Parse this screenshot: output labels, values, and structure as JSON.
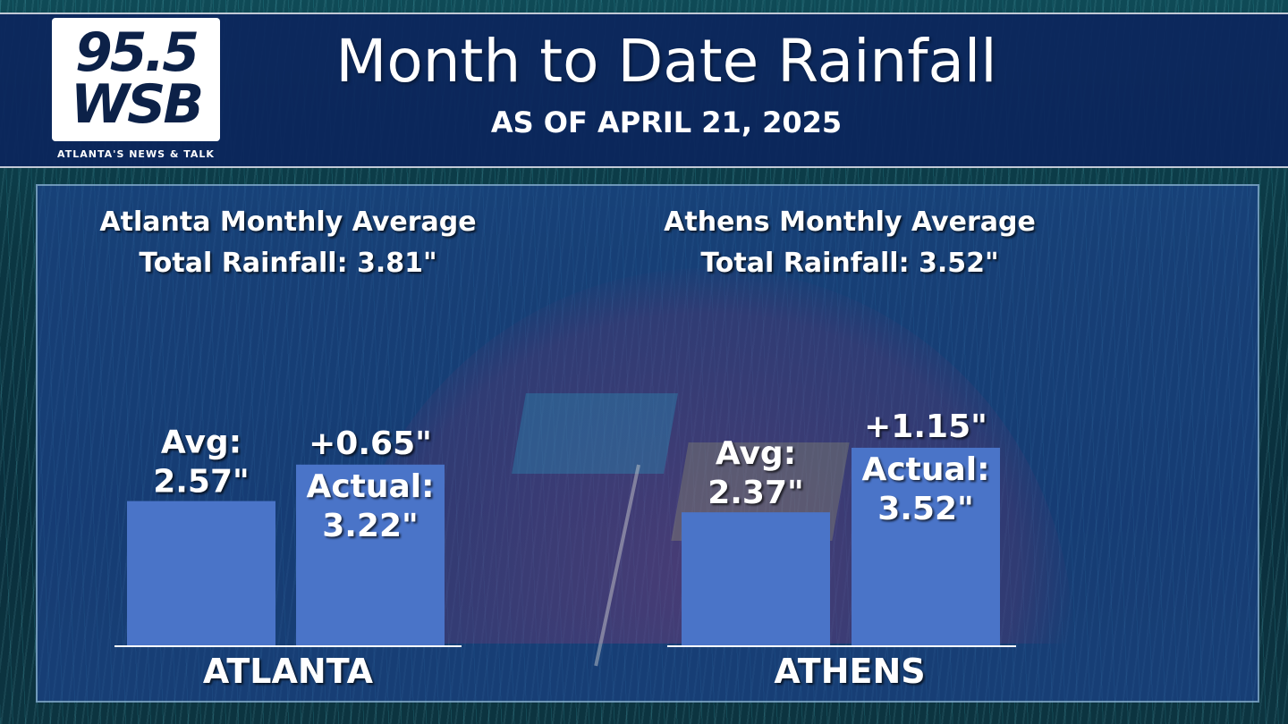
{
  "brand": {
    "station": "95.5",
    "call_sign": "WSB",
    "tagline": "ATLANTA'S NEWS & TALK"
  },
  "title": "Month to Date Rainfall",
  "subtitle": "AS OF APRIL 21, 2025",
  "colors": {
    "bar": "#4a74c8",
    "header": "#0c265c",
    "text": "#ffffff"
  },
  "chart_data": [
    {
      "type": "bar",
      "group_label": "ATLANTA",
      "heading_line1": "Atlanta Monthly Average",
      "heading_line2": "Total Rainfall: 3.81\"",
      "categories": [
        "Avg",
        "Actual"
      ],
      "values": [
        2.57,
        3.22
      ],
      "bar_labels": [
        {
          "line1": "Avg:",
          "line2": "2.57\""
        },
        {
          "line1": "Actual:",
          "line2": "3.22\""
        }
      ],
      "difference_label": "+0.65\"",
      "ylim": [
        0,
        4.5
      ]
    },
    {
      "type": "bar",
      "group_label": "ATHENS",
      "heading_line1": "Athens Monthly Average",
      "heading_line2": "Total Rainfall: 3.52\"",
      "categories": [
        "Avg",
        "Actual"
      ],
      "values": [
        2.37,
        3.52
      ],
      "bar_labels": [
        {
          "line1": "Avg:",
          "line2": "2.37\""
        },
        {
          "line1": "Actual:",
          "line2": "3.52\""
        }
      ],
      "difference_label": "+1.15\"",
      "ylim": [
        0,
        4.5
      ]
    }
  ]
}
